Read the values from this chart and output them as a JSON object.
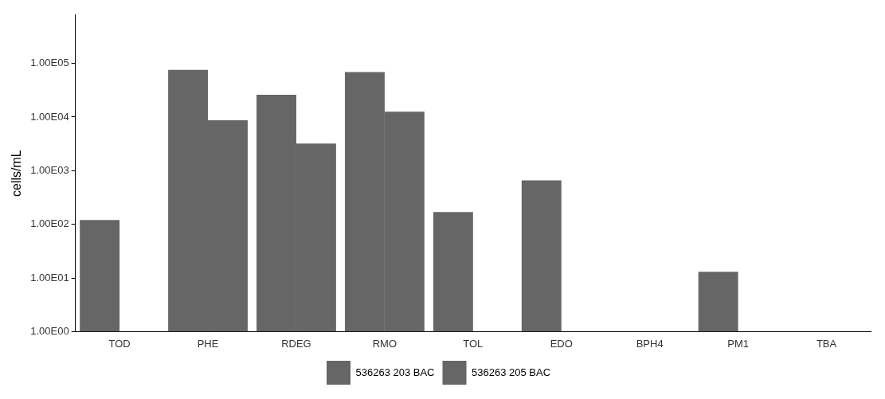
{
  "chart_data": {
    "type": "bar",
    "ylabel": "cells/mL",
    "log": true,
    "grid": false,
    "legend": "bottom",
    "categories": [
      "TOD",
      "PHE",
      "RDEG",
      "RMO",
      "TOL",
      "EDO",
      "BPH4",
      "PM1",
      "TBA"
    ],
    "ylim": [
      1,
      800000
    ],
    "yticks": [
      {
        "value": 1,
        "label": "1.00E00"
      },
      {
        "value": 10,
        "label": "1.00E01"
      },
      {
        "value": 100,
        "label": "1.00E02"
      },
      {
        "value": 1000,
        "label": "1.00E03"
      },
      {
        "value": 10000,
        "label": "1.00E04"
      },
      {
        "value": 100000,
        "label": "1.00E05"
      }
    ],
    "series": [
      {
        "name": "536263 203 BAC",
        "color": "#666666",
        "values": [
          120,
          76000,
          26000,
          69000,
          170,
          660,
          null,
          13,
          null
        ]
      },
      {
        "name": "536263 205 BAC",
        "color": "#666666",
        "values": [
          null,
          8700,
          3200,
          12600,
          null,
          null,
          null,
          null,
          null
        ]
      }
    ]
  }
}
